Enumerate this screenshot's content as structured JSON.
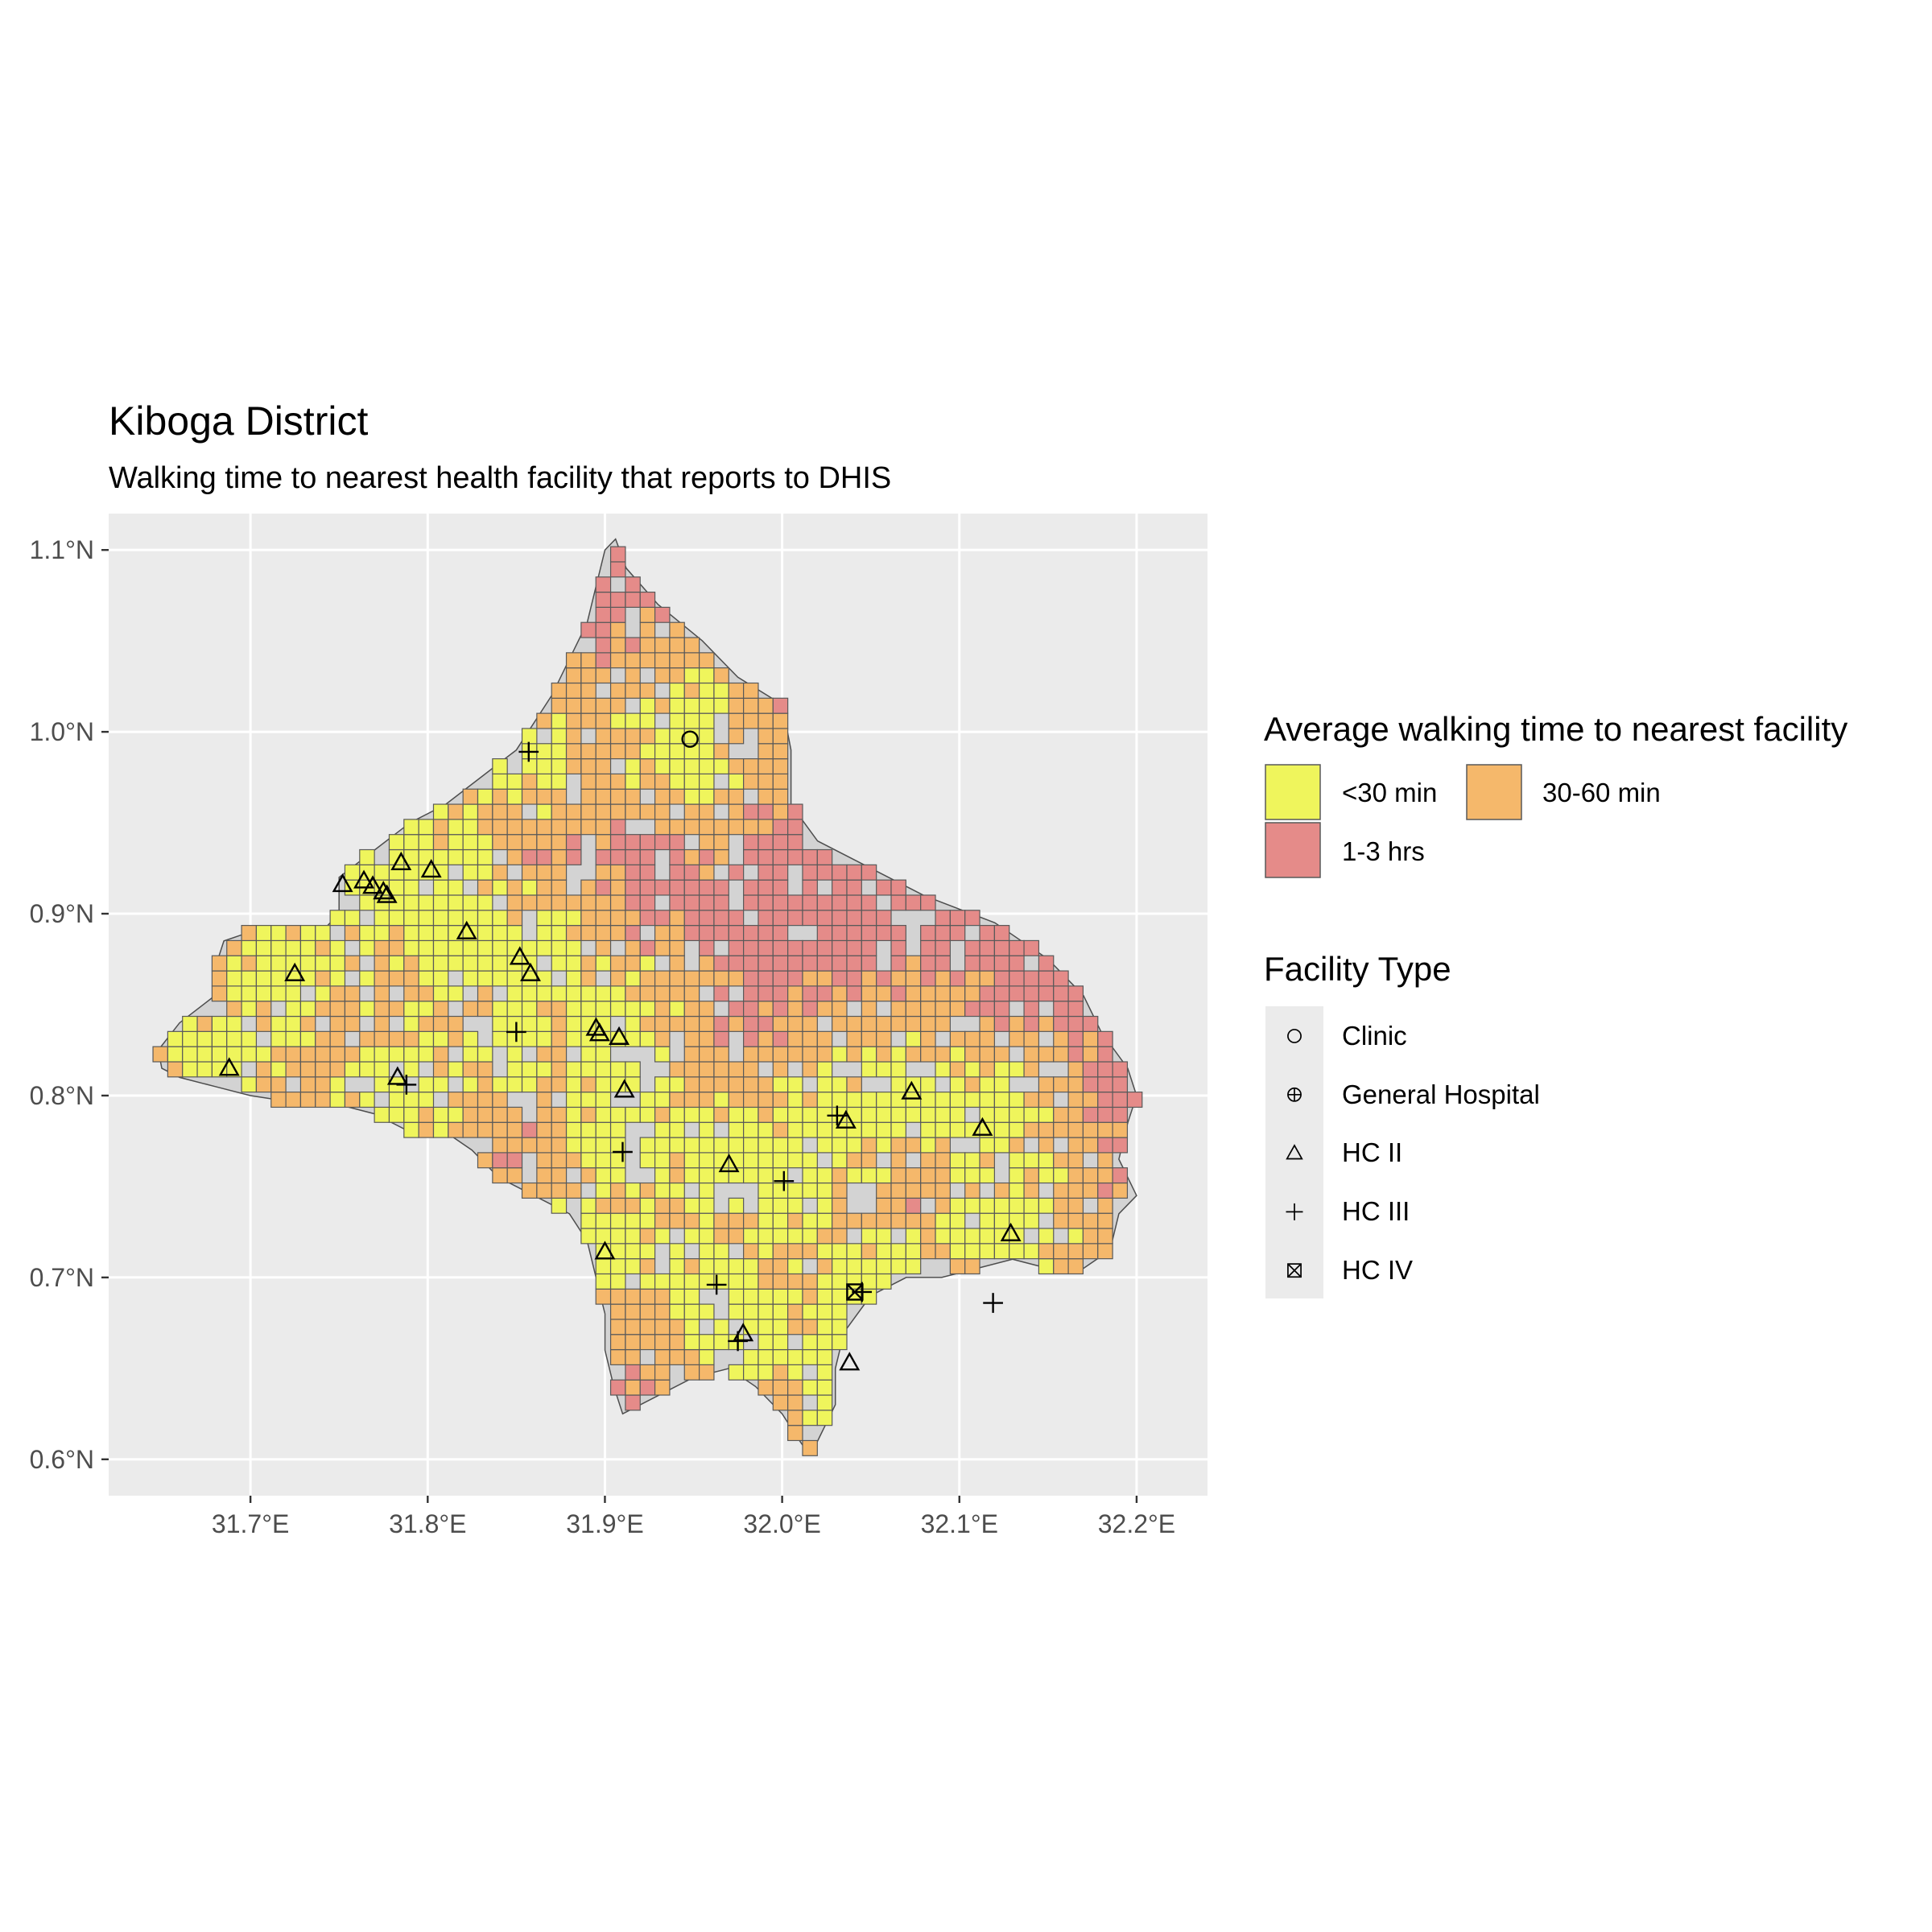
{
  "title": "Kiboga District",
  "subtitle": "Walking time to nearest health facility that reports to DHIS",
  "axes": {
    "x_ticks": [
      "31.7°E",
      "31.8°E",
      "31.9°E",
      "32.0°E",
      "32.1°E",
      "32.2°E"
    ],
    "y_ticks": [
      "0.6°N",
      "0.7°N",
      "0.8°N",
      "0.9°N",
      "1.0°N",
      "1.1°N"
    ],
    "x_values": [
      31.7,
      31.8,
      31.9,
      32.0,
      32.1,
      32.2
    ],
    "y_values": [
      0.6,
      0.7,
      0.8,
      0.9,
      1.0,
      1.1
    ],
    "xlim": [
      31.62,
      32.24
    ],
    "ylim": [
      0.58,
      1.12
    ]
  },
  "colors": {
    "panel": "#ebebeb",
    "gridline": "#ffffff",
    "district_fill": "#d3d3d3",
    "under30": "#eff55c",
    "30to60": "#f5b86b",
    "1to3h": "#e58b89",
    "cell_border": "#595959"
  },
  "legend_walk": {
    "title": "Average walking time to nearest facility",
    "items": [
      {
        "label": "<30 min",
        "color": "#eff55c"
      },
      {
        "label": "30-60 min",
        "color": "#f5b86b"
      },
      {
        "label": "1-3 hrs",
        "color": "#e58b89"
      }
    ]
  },
  "legend_facility": {
    "title": "Facility Type",
    "items": [
      {
        "label": "Clinic",
        "icon": "open-circle-icon"
      },
      {
        "label": "General Hospital",
        "icon": "circle-plus-icon"
      },
      {
        "label": "HC II",
        "icon": "triangle-icon"
      },
      {
        "label": "HC III",
        "icon": "plus-icon"
      },
      {
        "label": "HC IV",
        "icon": "boxed-x-icon"
      }
    ]
  },
  "chart_data": {
    "type": "map",
    "district_outline": [
      [
        31.906,
        1.106
      ],
      [
        31.912,
        1.09
      ],
      [
        31.93,
        1.07
      ],
      [
        31.955,
        1.05
      ],
      [
        31.975,
        1.03
      ],
      [
        32.0,
        1.015
      ],
      [
        32.005,
        0.99
      ],
      [
        32.005,
        0.96
      ],
      [
        32.02,
        0.94
      ],
      [
        32.05,
        0.925
      ],
      [
        32.08,
        0.91
      ],
      [
        32.12,
        0.895
      ],
      [
        32.15,
        0.875
      ],
      [
        32.17,
        0.855
      ],
      [
        32.18,
        0.835
      ],
      [
        32.195,
        0.815
      ],
      [
        32.2,
        0.8
      ],
      [
        32.195,
        0.785
      ],
      [
        32.19,
        0.765
      ],
      [
        32.2,
        0.745
      ],
      [
        32.19,
        0.735
      ],
      [
        32.185,
        0.715
      ],
      [
        32.17,
        0.705
      ],
      [
        32.15,
        0.705
      ],
      [
        32.13,
        0.71
      ],
      [
        32.11,
        0.705
      ],
      [
        32.09,
        0.7
      ],
      [
        32.07,
        0.7
      ],
      [
        32.05,
        0.69
      ],
      [
        32.035,
        0.67
      ],
      [
        32.03,
        0.65
      ],
      [
        32.03,
        0.63
      ],
      [
        32.02,
        0.61
      ],
      [
        32.015,
        0.603
      ],
      [
        32.01,
        0.61
      ],
      [
        32.0,
        0.625
      ],
      [
        31.985,
        0.64
      ],
      [
        31.97,
        0.65
      ],
      [
        31.95,
        0.645
      ],
      [
        31.93,
        0.635
      ],
      [
        31.91,
        0.625
      ],
      [
        31.905,
        0.64
      ],
      [
        31.9,
        0.66
      ],
      [
        31.9,
        0.68
      ],
      [
        31.895,
        0.7
      ],
      [
        31.89,
        0.72
      ],
      [
        31.88,
        0.735
      ],
      [
        31.86,
        0.745
      ],
      [
        31.84,
        0.755
      ],
      [
        31.825,
        0.77
      ],
      [
        31.81,
        0.78
      ],
      [
        31.79,
        0.78
      ],
      [
        31.77,
        0.79
      ],
      [
        31.75,
        0.795
      ],
      [
        31.72,
        0.797
      ],
      [
        31.7,
        0.8
      ],
      [
        31.68,
        0.805
      ],
      [
        31.66,
        0.81
      ],
      [
        31.65,
        0.815
      ],
      [
        31.648,
        0.825
      ],
      [
        31.66,
        0.84
      ],
      [
        31.68,
        0.855
      ],
      [
        31.68,
        0.87
      ],
      [
        31.685,
        0.885
      ],
      [
        31.7,
        0.89
      ],
      [
        31.72,
        0.89
      ],
      [
        31.74,
        0.89
      ],
      [
        31.75,
        0.9
      ],
      [
        31.75,
        0.92
      ],
      [
        31.77,
        0.935
      ],
      [
        31.79,
        0.95
      ],
      [
        31.81,
        0.96
      ],
      [
        31.83,
        0.975
      ],
      [
        31.85,
        0.99
      ],
      [
        31.86,
        1.005
      ],
      [
        31.87,
        1.02
      ],
      [
        31.88,
        1.04
      ],
      [
        31.89,
        1.06
      ],
      [
        31.895,
        1.08
      ],
      [
        31.9,
        1.1
      ]
    ],
    "grid": {
      "cell_size_deg": 0.00833,
      "legend_key": {
        "1": "<30 min",
        "2": "30-60 min",
        "3": "1-3 hrs"
      }
    },
    "facilities": [
      {
        "type": "Clinic",
        "lon": 31.948,
        "lat": 0.996
      },
      {
        "type": "HC III",
        "lon": 31.857,
        "lat": 0.989
      },
      {
        "type": "HC II",
        "lon": 31.752,
        "lat": 0.916
      },
      {
        "type": "HC II",
        "lon": 31.764,
        "lat": 0.918
      },
      {
        "type": "HC II",
        "lon": 31.769,
        "lat": 0.915
      },
      {
        "type": "HC II",
        "lon": 31.775,
        "lat": 0.912
      },
      {
        "type": "HC II",
        "lon": 31.777,
        "lat": 0.91
      },
      {
        "type": "HC II",
        "lon": 31.785,
        "lat": 0.928
      },
      {
        "type": "HC II",
        "lon": 31.802,
        "lat": 0.924
      },
      {
        "type": "HC II",
        "lon": 31.822,
        "lat": 0.89
      },
      {
        "type": "HC II",
        "lon": 31.852,
        "lat": 0.876
      },
      {
        "type": "HC II",
        "lon": 31.858,
        "lat": 0.867
      },
      {
        "type": "HC II",
        "lon": 31.725,
        "lat": 0.867
      },
      {
        "type": "HC II",
        "lon": 31.688,
        "lat": 0.815
      },
      {
        "type": "HC II",
        "lon": 31.783,
        "lat": 0.81
      },
      {
        "type": "HC III",
        "lon": 31.788,
        "lat": 0.806
      },
      {
        "type": "HC III",
        "lon": 31.85,
        "lat": 0.835
      },
      {
        "type": "HC II",
        "lon": 31.895,
        "lat": 0.837
      },
      {
        "type": "HC II",
        "lon": 31.897,
        "lat": 0.834
      },
      {
        "type": "HC II",
        "lon": 31.908,
        "lat": 0.832
      },
      {
        "type": "HC II",
        "lon": 31.911,
        "lat": 0.803
      },
      {
        "type": "HC III",
        "lon": 31.91,
        "lat": 0.769
      },
      {
        "type": "HC II",
        "lon": 31.97,
        "lat": 0.762
      },
      {
        "type": "HC III",
        "lon": 32.001,
        "lat": 0.753
      },
      {
        "type": "HC II",
        "lon": 32.036,
        "lat": 0.786
      },
      {
        "type": "HC III",
        "lon": 32.031,
        "lat": 0.789
      },
      {
        "type": "HC II",
        "lon": 32.073,
        "lat": 0.802
      },
      {
        "type": "HC II",
        "lon": 32.113,
        "lat": 0.782
      },
      {
        "type": "HC II",
        "lon": 32.129,
        "lat": 0.724
      },
      {
        "type": "HC II",
        "lon": 31.9,
        "lat": 0.714
      },
      {
        "type": "HC III",
        "lon": 31.963,
        "lat": 0.696
      },
      {
        "type": "HC II",
        "lon": 31.978,
        "lat": 0.669
      },
      {
        "type": "HC III",
        "lon": 31.975,
        "lat": 0.665
      },
      {
        "type": "HC IV",
        "lon": 32.041,
        "lat": 0.692
      },
      {
        "type": "HC III",
        "lon": 32.045,
        "lat": 0.692
      },
      {
        "type": "HC II",
        "lon": 32.038,
        "lat": 0.653
      },
      {
        "type": "HC III",
        "lon": 32.119,
        "lat": 0.686
      }
    ]
  }
}
